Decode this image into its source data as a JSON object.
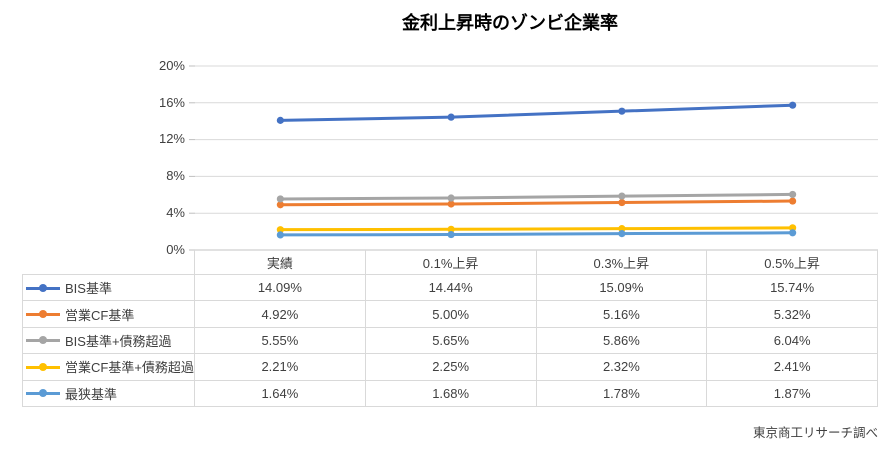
{
  "title": "金利上昇時のゾンビ企業率",
  "source_note": "東京商工リサーチ調べ",
  "chart_data": {
    "type": "line",
    "title": "金利上昇時のゾンビ企業率",
    "categories": [
      "実績",
      "0.1%上昇",
      "0.3%上昇",
      "0.5%上昇"
    ],
    "series": [
      {
        "name": "BIS基準",
        "color": "#4472C4",
        "values": [
          14.09,
          14.44,
          15.09,
          15.74
        ]
      },
      {
        "name": "営業CF基準",
        "color": "#ED7D31",
        "values": [
          4.92,
          5.0,
          5.16,
          5.32
        ]
      },
      {
        "name": "BIS基準+債務超過",
        "color": "#A5A5A5",
        "values": [
          5.55,
          5.65,
          5.86,
          6.04
        ]
      },
      {
        "name": "営業CF基準+債務超過",
        "color": "#FFC000",
        "values": [
          2.21,
          2.25,
          2.32,
          2.41
        ]
      },
      {
        "name": "最狭基準",
        "color": "#5B9BD5",
        "values": [
          1.64,
          1.68,
          1.78,
          1.87
        ]
      }
    ],
    "ylim": [
      0,
      20
    ],
    "yticks": [
      "20%",
      "16%",
      "12%",
      "8%",
      "4%",
      "0%"
    ],
    "grid": true,
    "marker": "circle",
    "legend_position": "data-table-left-column"
  },
  "table": {
    "headers": [
      "実績",
      "0.1%上昇",
      "0.3%上昇",
      "0.5%上昇"
    ],
    "values": [
      [
        "14.09%",
        "14.44%",
        "15.09%",
        "15.74%"
      ],
      [
        "4.92%",
        "5.00%",
        "5.16%",
        "5.32%"
      ],
      [
        "5.55%",
        "5.65%",
        "5.86%",
        "6.04%"
      ],
      [
        "2.21%",
        "2.25%",
        "2.32%",
        "2.41%"
      ],
      [
        "1.64%",
        "1.68%",
        "1.78%",
        "1.87%"
      ]
    ]
  }
}
